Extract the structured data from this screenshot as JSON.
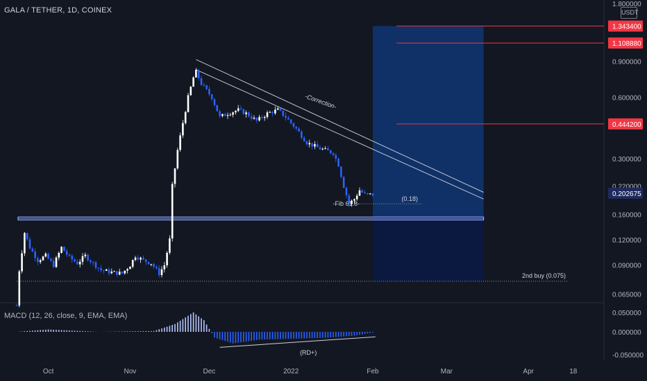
{
  "header": {
    "title": "GALA / TETHER, 1D, COINEX"
  },
  "currency": "USDT",
  "macd_label": "MACD (12, 26, close, 9, EMA, EMA)",
  "colors": {
    "background": "#131722",
    "bull": "#ffffff",
    "bear": "#2962ff",
    "target_line": "#f23645",
    "box": "#0d47a1",
    "text": "#b2b5be"
  },
  "chart_data": [
    {
      "type": "candlestick",
      "title": "GALA / TETHER, 1D, COINEX",
      "scale": "log",
      "y_ticks": [
        "1.800000",
        "0.900000",
        "0.600000",
        "0.300000",
        "0.220000",
        "0.160000",
        "0.120000",
        "0.090000",
        "0.065000"
      ],
      "x_ticks": [
        "Oct",
        "Nov",
        "Dec",
        "2022",
        "Feb",
        "Mar",
        "Apr",
        "18"
      ],
      "last_price": "0.202675",
      "targets": [
        "1.343400",
        "1.108880",
        "0.444200"
      ],
      "annotations": [
        "-Correction-",
        "-Fib 61.8-",
        "(0.18)",
        "2nd buy (0.075)"
      ],
      "support_zone": [
        0.15,
        0.155
      ],
      "close_path": [
        [
          "2021-09-19",
          0.057
        ],
        [
          "2021-09-20",
          0.085
        ],
        [
          "2021-09-22",
          0.13
        ],
        [
          "2021-09-24",
          0.11
        ],
        [
          "2021-09-27",
          0.095
        ],
        [
          "2021-09-30",
          0.1
        ],
        [
          "2021-10-03",
          0.09
        ],
        [
          "2021-10-06",
          0.11
        ],
        [
          "2021-10-09",
          0.098
        ],
        [
          "2021-10-12",
          0.092
        ],
        [
          "2021-10-15",
          0.1
        ],
        [
          "2021-10-18",
          0.092
        ],
        [
          "2021-10-21",
          0.085
        ],
        [
          "2021-10-25",
          0.083
        ],
        [
          "2021-10-29",
          0.082
        ],
        [
          "2021-11-01",
          0.09
        ],
        [
          "2021-11-03",
          0.1
        ],
        [
          "2021-11-06",
          0.095
        ],
        [
          "2021-11-09",
          0.092
        ],
        [
          "2021-11-12",
          0.082
        ],
        [
          "2021-11-14",
          0.09
        ],
        [
          "2021-11-16",
          0.12
        ],
        [
          "2021-11-17",
          0.22
        ],
        [
          "2021-11-19",
          0.33
        ],
        [
          "2021-11-21",
          0.45
        ],
        [
          "2021-11-23",
          0.6
        ],
        [
          "2021-11-25",
          0.75
        ],
        [
          "2021-11-26",
          0.8
        ],
        [
          "2021-11-28",
          0.7
        ],
        [
          "2021-12-02",
          0.6
        ],
        [
          "2021-12-05",
          0.48
        ],
        [
          "2021-12-08",
          0.5
        ],
        [
          "2021-12-12",
          0.52
        ],
        [
          "2021-12-15",
          0.5
        ],
        [
          "2021-12-19",
          0.46
        ],
        [
          "2021-12-23",
          0.5
        ],
        [
          "2021-12-27",
          0.52
        ],
        [
          "2021-12-30",
          0.48
        ],
        [
          "2022-01-03",
          0.42
        ],
        [
          "2022-01-07",
          0.36
        ],
        [
          "2022-01-11",
          0.34
        ],
        [
          "2022-01-14",
          0.33
        ],
        [
          "2022-01-17",
          0.32
        ],
        [
          "2022-01-19",
          0.28
        ],
        [
          "2022-01-21",
          0.22
        ],
        [
          "2022-01-23",
          0.18
        ],
        [
          "2022-01-25",
          0.19
        ],
        [
          "2022-01-27",
          0.21
        ],
        [
          "2022-01-29",
          0.2
        ],
        [
          "2022-02-01",
          0.2
        ]
      ],
      "macd_histogram_path": [
        [
          "2021-09-19",
          0.0
        ],
        [
          "2021-10-01",
          0.006
        ],
        [
          "2021-10-20",
          0.0
        ],
        [
          "2021-11-10",
          0.002
        ],
        [
          "2021-11-18",
          0.02
        ],
        [
          "2021-11-25",
          0.05
        ],
        [
          "2021-11-29",
          0.03
        ],
        [
          "2021-12-03",
          -0.015
        ],
        [
          "2021-12-10",
          -0.03
        ],
        [
          "2021-12-20",
          -0.02
        ],
        [
          "2022-01-01",
          -0.018
        ],
        [
          "2022-01-15",
          -0.015
        ],
        [
          "2022-01-25",
          -0.01
        ],
        [
          "2022-02-01",
          -0.002
        ]
      ],
      "macd_ticks": [
        "0.050000",
        "0.000000",
        "-0.050000"
      ],
      "macd_annotation": "(RD+)"
    }
  ]
}
